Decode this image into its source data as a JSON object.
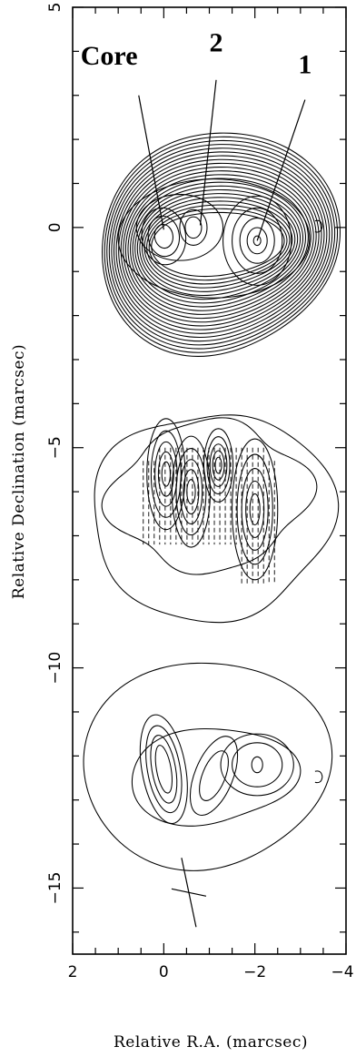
{
  "chart_data": {
    "type": "contour",
    "xlabel": "Relative R.A. (marcsec)",
    "ylabel": "Relative Declination (marcsec)",
    "xlim": [
      2,
      -4
    ],
    "ylim": [
      -16.5,
      5
    ],
    "x_ticks": [
      2,
      0,
      -2,
      -4
    ],
    "x_tick_labels": [
      "2",
      "0",
      "−2",
      "−4"
    ],
    "y_ticks": [
      5,
      0,
      -5,
      -10,
      -15
    ],
    "y_tick_labels": [
      "5",
      "0",
      "−5",
      "−10",
      "−15"
    ],
    "grid": false,
    "panels": [
      {
        "name": "total-intensity",
        "center": [
          -1,
          0
        ],
        "components": [
          {
            "label": "Core",
            "ra": 0.0,
            "dec": -0.2
          },
          {
            "label": "2",
            "ra": -0.65,
            "dec": 0.0
          },
          {
            "label": "1",
            "ra": -2.05,
            "dec": -0.3
          }
        ]
      },
      {
        "name": "polarized-intensity",
        "center": [
          -1,
          -6.5
        ],
        "components": [
          {
            "ra": -0.05,
            "dec": -5.6
          },
          {
            "ra": -0.6,
            "dec": -6.0
          },
          {
            "ra": -1.2,
            "dec": -5.4
          },
          {
            "ra": -2.0,
            "dec": -6.4
          }
        ]
      },
      {
        "name": "lower-contours",
        "center": [
          -1,
          -12.5
        ],
        "components": [
          {
            "ra": 0.0,
            "dec": -12.3
          },
          {
            "ra": -1.1,
            "dec": -12.4
          },
          {
            "ra": -2.05,
            "dec": -12.2
          }
        ]
      }
    ],
    "annotations": [
      {
        "text": "Core",
        "ra": 1.2,
        "dec": 3.7
      },
      {
        "text": "2",
        "ra": -1.15,
        "dec": 4.0
      },
      {
        "text": "1",
        "ra": -3.1,
        "dec": 3.5
      }
    ],
    "beam": {
      "ra": -0.55,
      "dec": -15.1
    }
  }
}
